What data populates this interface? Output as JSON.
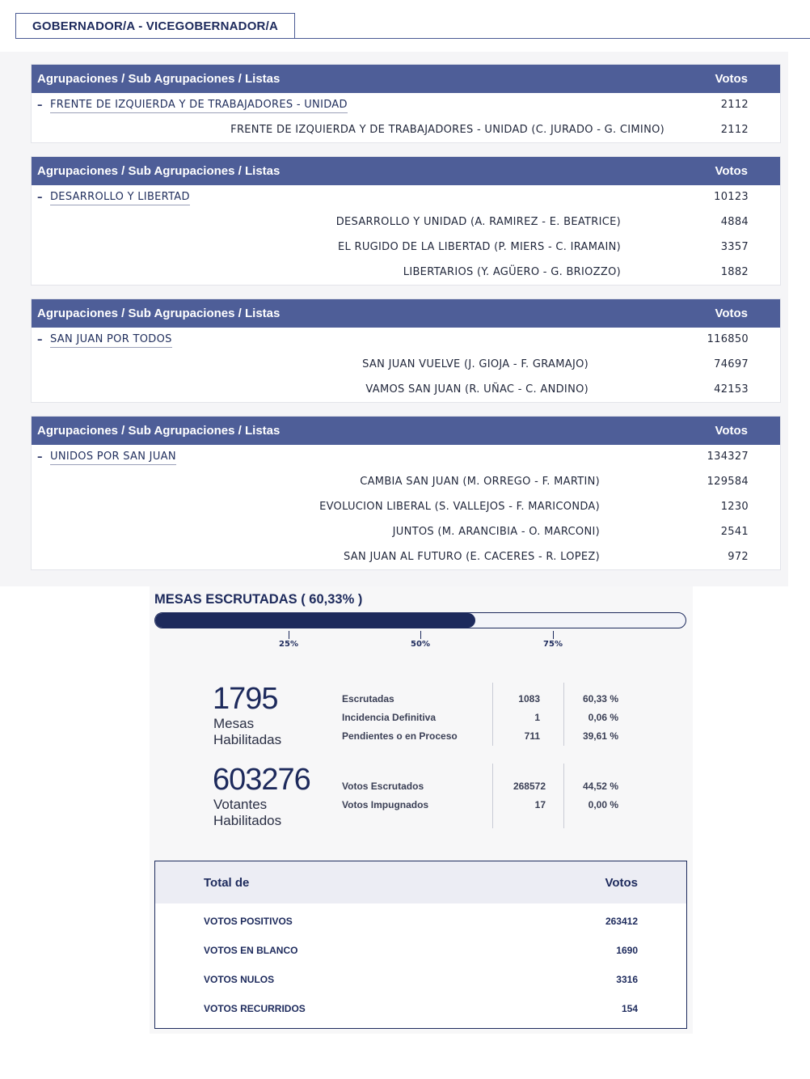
{
  "tab": {
    "label": "GOBERNADOR/A - VICEGOBERNADOR/A"
  },
  "groups": [
    {
      "header_left": "Agrupaciones / Sub Agrupaciones / Listas",
      "header_right": "Votos",
      "name": "FRENTE DE IZQUIERDA Y DE TRABAJADORES - UNIDAD",
      "votes": "2112",
      "lists": [
        {
          "name": "FRENTE DE IZQUIERDA Y DE TRABAJADORES - UNIDAD (C. JURADO - G. CIMINO)",
          "votes": "2112"
        }
      ]
    },
    {
      "header_left": "Agrupaciones / Sub Agrupaciones / Listas",
      "header_right": "Votos",
      "name": "DESARROLLO Y LIBERTAD",
      "votes": "10123",
      "lists": [
        {
          "name": "DESARROLLO Y UNIDAD (A. RAMIREZ - E. BEATRICE)",
          "votes": "4884"
        },
        {
          "name": "EL RUGIDO DE LA LIBERTAD (P. MIERS - C. IRAMAIN)",
          "votes": "3357"
        },
        {
          "name": "LIBERTARIOS (Y. AGÜERO - G. BRIOZZO)",
          "votes": "1882"
        }
      ]
    },
    {
      "header_left": "Agrupaciones / Sub Agrupaciones / Listas",
      "header_right": "Votos",
      "name": "SAN JUAN POR TODOS",
      "votes": "116850",
      "lists": [
        {
          "name": "SAN JUAN VUELVE (J. GIOJA - F. GRAMAJO)",
          "votes": "74697"
        },
        {
          "name": "VAMOS SAN JUAN (R. UÑAC - C. ANDINO)",
          "votes": "42153"
        }
      ]
    },
    {
      "header_left": "Agrupaciones / Sub Agrupaciones / Listas",
      "header_right": "Votos",
      "name": "UNIDOS POR SAN JUAN",
      "votes": "134327",
      "lists": [
        {
          "name": "CAMBIA SAN JUAN (M. ORREGO - F. MARTIN)",
          "votes": "129584"
        },
        {
          "name": "EVOLUCION LIBERAL (S. VALLEJOS - F. MARICONDA)",
          "votes": "1230"
        },
        {
          "name": "JUNTOS (M. ARANCIBIA - O. MARCONI)",
          "votes": "2541"
        },
        {
          "name": "SAN JUAN AL FUTURO (E. CACERES - R. LOPEZ)",
          "votes": "972"
        }
      ]
    }
  ],
  "mesas": {
    "title": "MESAS ESCRUTADAS ( 60,33% )",
    "progress": 0.6033,
    "ticks": [
      "25%",
      "50%",
      "75%"
    ]
  },
  "summary": {
    "mesas_habilitadas": {
      "value": "1795",
      "label_line1": "Mesas",
      "label_line2": "Habilitadas"
    },
    "votantes_habilitados": {
      "value": "603276",
      "label_line1": "Votantes",
      "label_line2": "Habilitados"
    },
    "mesas_stats": [
      {
        "label": "Escrutadas",
        "count": "1083",
        "pct": "60,33 %"
      },
      {
        "label": "Incidencia Definitiva",
        "count": "1",
        "pct": "0,06 %"
      },
      {
        "label": "Pendientes o en Proceso",
        "count": "711",
        "pct": "39,61 %"
      }
    ],
    "votos_stats": [
      {
        "label": "Votos Escrutados",
        "count": "268572",
        "pct": "44,52 %"
      },
      {
        "label": "Votos Impugnados",
        "count": "17",
        "pct": "0,00 %"
      }
    ]
  },
  "totals": {
    "header_left": "Total de",
    "header_right": "Votos",
    "rows": [
      {
        "label": "VOTOS POSITIVOS",
        "value": "263412"
      },
      {
        "label": "VOTOS EN BLANCO",
        "value": "1690"
      },
      {
        "label": "VOTOS NULOS",
        "value": "3316"
      },
      {
        "label": "VOTOS RECURRIDOS",
        "value": "154"
      }
    ]
  },
  "colors": {
    "header_bg": "#4e5e98",
    "navy": "#1d2a5c"
  }
}
